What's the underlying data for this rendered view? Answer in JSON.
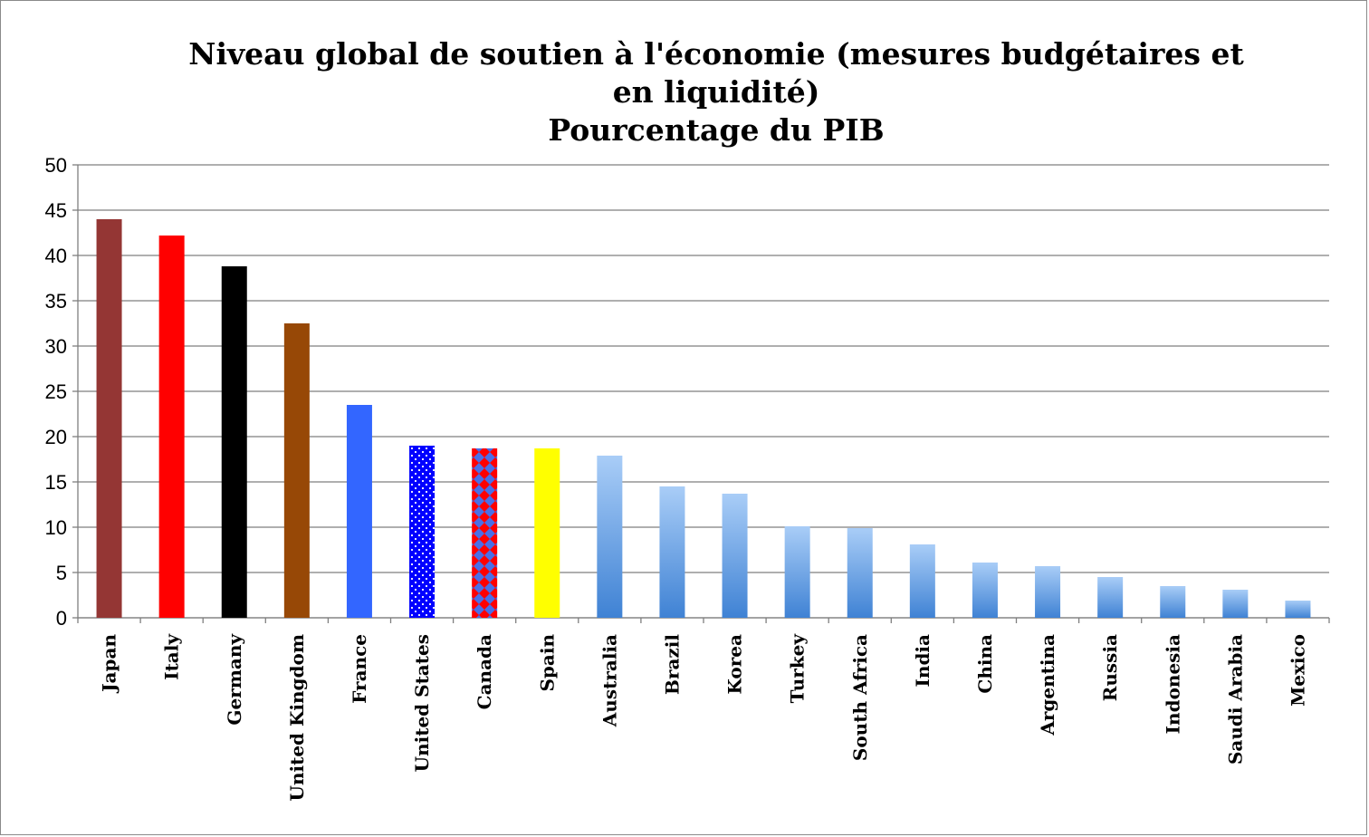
{
  "chart_data": {
    "type": "bar",
    "title_lines": [
      "Niveau global de soutien à l'économie (mesures budgétaires et",
      "en liquidité)",
      "Pourcentage du PIB"
    ],
    "categories": [
      "Japan",
      "Italy",
      "Germany",
      "United Kingdom",
      "France",
      "United States",
      "Canada",
      "Spain",
      "Australia",
      "Brazil",
      "Korea",
      "Turkey",
      "South Africa",
      "India",
      "China",
      "Argentina",
      "Russia",
      "Indonesia",
      "Saudi Arabia",
      "Mexico"
    ],
    "values": [
      44.0,
      42.2,
      38.8,
      32.5,
      23.5,
      19.0,
      18.7,
      18.7,
      17.9,
      14.5,
      13.7,
      10.1,
      9.9,
      8.1,
      6.1,
      5.7,
      4.5,
      3.5,
      3.1,
      1.9
    ],
    "bar_styles": [
      "solid",
      "solid",
      "solid",
      "solid",
      "solid",
      "dots",
      "diamonds",
      "solid",
      "gradient",
      "gradient",
      "gradient",
      "gradient",
      "gradient",
      "gradient",
      "gradient",
      "gradient",
      "gradient",
      "gradient",
      "gradient",
      "gradient"
    ],
    "bar_colors": [
      "#943634",
      "#ff0000",
      "#000000",
      "#974806",
      "#3366ff",
      "#0000ff",
      "#4a6fe8",
      "#ffff00",
      "#5b9bd5",
      "#5b9bd5",
      "#5b9bd5",
      "#5b9bd5",
      "#5b9bd5",
      "#5b9bd5",
      "#5b9bd5",
      "#5b9bd5",
      "#5b9bd5",
      "#5b9bd5",
      "#5b9bd5",
      "#5b9bd5"
    ],
    "pattern_colors": {
      "dots": "#ffffff",
      "diamonds": "#ff0000"
    },
    "gradient_colors": [
      "#a9cdf7",
      "#3f82d4"
    ],
    "ylim": [
      0,
      50
    ],
    "yticks": [
      0,
      5,
      10,
      15,
      20,
      25,
      30,
      35,
      40,
      45,
      50
    ],
    "grid": true,
    "xlabel": "",
    "ylabel": ""
  }
}
